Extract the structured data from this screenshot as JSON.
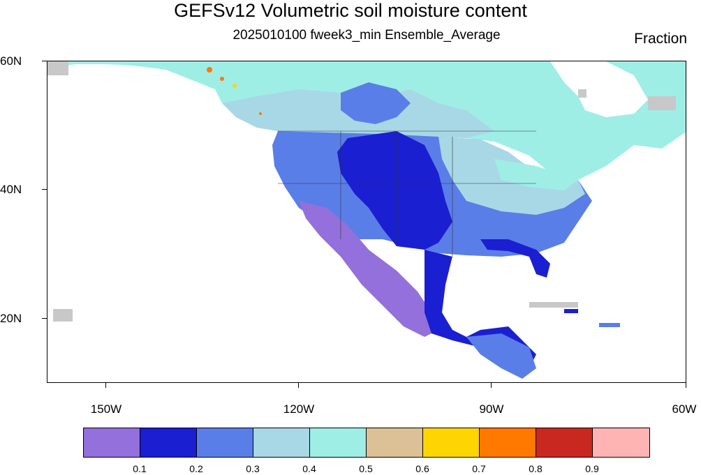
{
  "title": "GEFSv12 Volumetric soil moisture content",
  "subtitle": "2025010100 fweek3_min Ensemble_Average",
  "units": "Fraction",
  "lat_labels": [
    "60N",
    "40N",
    "20N"
  ],
  "lon_labels": [
    "150W",
    "120W",
    "90W",
    "60W"
  ],
  "colorbar": {
    "colors": [
      "#9370db",
      "#1a1fd1",
      "#5a7ee8",
      "#a8d8e6",
      "#9eeee6",
      "#dcc096",
      "#ffd500",
      "#ff7800",
      "#c82820",
      "#ffb4b4"
    ],
    "labels": [
      "0.1",
      "0.2",
      "0.3",
      "0.4",
      "0.5",
      "0.6",
      "0.7",
      "0.8",
      "0.9"
    ]
  },
  "missing_color": "#c8c8c8"
}
